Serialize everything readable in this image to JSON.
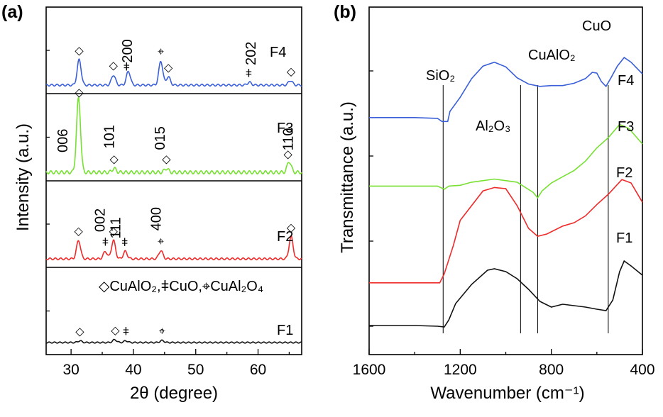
{
  "chart_data": [
    {
      "panel": "(a)",
      "type": "line",
      "xlabel": "2θ (degree)",
      "ylabel": "Intensity (a.u.)",
      "xlim": [
        26,
        67
      ],
      "xticks": [
        30,
        40,
        50,
        60
      ],
      "legend_text": "◇CuAlO₂,ǂCuO,⌖CuAl₂O₄",
      "panels": [
        {
          "name": "F4",
          "color": "#3a5fd8",
          "peaks": [
            [
              31.3,
              0.55
            ],
            [
              36.8,
              0.22
            ],
            [
              39.2,
              0.3
            ],
            [
              44.4,
              0.52
            ],
            [
              45.6,
              0.18
            ],
            [
              58.6,
              0.06
            ],
            [
              65.2,
              0.1
            ]
          ],
          "markers": [
            {
              "x": 31.3,
              "sym": "◇"
            },
            {
              "x": 36.8,
              "sym": "◇"
            },
            {
              "x": 38.9,
              "sym": "ǂ"
            },
            {
              "x": 44.4,
              "sym": "⌖"
            },
            {
              "x": 45.6,
              "sym": "◇"
            },
            {
              "x": 58.5,
              "sym": "ǂ"
            },
            {
              "x": 65.3,
              "sym": "◇"
            }
          ],
          "hkl": [
            {
              "x": 39.8,
              "text": "200"
            },
            {
              "x": 59.6,
              "text": "202"
            }
          ]
        },
        {
          "name": "F3",
          "color": "#77e033",
          "peaks": [
            [
              31.2,
              0.95
            ],
            [
              36.9,
              0.05
            ],
            [
              45.3,
              0.05
            ],
            [
              65.0,
              0.14
            ]
          ],
          "markers": [
            {
              "x": 31.3,
              "sym": "◇"
            },
            {
              "x": 36.9,
              "sym": "◇"
            },
            {
              "x": 45.3,
              "sym": "◇"
            },
            {
              "x": 64.8,
              "sym": "◇"
            }
          ],
          "hkl": [
            {
              "x": 29.4,
              "text": "006"
            },
            {
              "x": 36.9,
              "text": "101"
            },
            {
              "x": 45.0,
              "text": "015"
            },
            {
              "x": 65.6,
              "text": "110"
            }
          ]
        },
        {
          "name": "F2",
          "color": "#ee2a2a",
          "peaks": [
            [
              31.2,
              0.4
            ],
            [
              35.5,
              0.16
            ],
            [
              36.8,
              0.4
            ],
            [
              38.7,
              0.16
            ],
            [
              44.4,
              0.18
            ],
            [
              65.3,
              0.48
            ]
          ],
          "markers": [
            {
              "x": 31.2,
              "sym": "◇"
            },
            {
              "x": 35.5,
              "sym": "ǂ"
            },
            {
              "x": 36.8,
              "sym": "◇"
            },
            {
              "x": 38.6,
              "sym": "ǂ"
            },
            {
              "x": 44.4,
              "sym": "⌖"
            },
            {
              "x": 65.3,
              "sym": "◇"
            }
          ],
          "hkl": [
            {
              "x": 35.4,
              "text": "002"
            },
            {
              "x": 37.9,
              "text": "111"
            },
            {
              "x": 44.4,
              "text": "400"
            }
          ]
        },
        {
          "name": "F1",
          "color": "#111111",
          "peaks": [
            [
              31.4,
              0.06
            ],
            [
              37.0,
              0.1
            ],
            [
              38.8,
              0.06
            ],
            [
              44.6,
              0.07
            ]
          ],
          "markers": [
            {
              "x": 31.4,
              "sym": "◇"
            },
            {
              "x": 37.1,
              "sym": "◇"
            },
            {
              "x": 38.8,
              "sym": "ǂ"
            },
            {
              "x": 44.6,
              "sym": "⌖"
            }
          ],
          "hkl": []
        }
      ]
    },
    {
      "panel": "(b)",
      "type": "line",
      "xlabel": "Wavenumber (cm⁻¹)",
      "ylabel": "Transmittance (a.u.)",
      "xlim": [
        1600,
        400
      ],
      "xticks": [
        1600,
        1200,
        800,
        400
      ],
      "series": [
        {
          "name": "F4",
          "color": "#3a5fd8",
          "points": [
            [
              1600,
              0.22
            ],
            [
              1400,
              0.22
            ],
            [
              1300,
              0.21
            ],
            [
              1280,
              0.17
            ],
            [
              1255,
              0.17
            ],
            [
              1245,
              0.3
            ],
            [
              1200,
              0.48
            ],
            [
              1150,
              0.72
            ],
            [
              1100,
              0.88
            ],
            [
              1050,
              0.93
            ],
            [
              1000,
              0.87
            ],
            [
              950,
              0.73
            ],
            [
              900,
              0.65
            ],
            [
              850,
              0.62
            ],
            [
              800,
              0.63
            ],
            [
              750,
              0.63
            ],
            [
              700,
              0.66
            ],
            [
              650,
              0.72
            ],
            [
              620,
              0.8
            ],
            [
              600,
              0.79
            ],
            [
              580,
              0.68
            ],
            [
              560,
              0.62
            ],
            [
              540,
              0.72
            ],
            [
              510,
              0.88
            ],
            [
              480,
              0.99
            ],
            [
              450,
              0.93
            ],
            [
              400,
              0.78
            ]
          ]
        },
        {
          "name": "F3",
          "color": "#77e033",
          "points": [
            [
              1600,
              0.16
            ],
            [
              1400,
              0.16
            ],
            [
              1300,
              0.16
            ],
            [
              1270,
              0.12
            ],
            [
              1250,
              0.16
            ],
            [
              1200,
              0.17
            ],
            [
              1150,
              0.21
            ],
            [
              1050,
              0.25
            ],
            [
              950,
              0.21
            ],
            [
              880,
              0.08
            ],
            [
              860,
              0.01
            ],
            [
              840,
              0.1
            ],
            [
              800,
              0.2
            ],
            [
              750,
              0.28
            ],
            [
              700,
              0.36
            ],
            [
              650,
              0.48
            ],
            [
              600,
              0.65
            ],
            [
              550,
              0.78
            ],
            [
              500,
              0.95
            ],
            [
              460,
              0.9
            ],
            [
              400,
              0.7
            ]
          ]
        },
        {
          "name": "F2",
          "color": "#ee2a2a",
          "points": [
            [
              1600,
              0.07
            ],
            [
              1400,
              0.07
            ],
            [
              1290,
              0.07
            ],
            [
              1270,
              0.15
            ],
            [
              1230,
              0.4
            ],
            [
              1200,
              0.62
            ],
            [
              1100,
              0.88
            ],
            [
              1050,
              0.91
            ],
            [
              1000,
              0.9
            ],
            [
              950,
              0.75
            ],
            [
              900,
              0.55
            ],
            [
              860,
              0.48
            ],
            [
              820,
              0.5
            ],
            [
              750,
              0.57
            ],
            [
              700,
              0.6
            ],
            [
              650,
              0.66
            ],
            [
              600,
              0.76
            ],
            [
              550,
              0.85
            ],
            [
              490,
              0.98
            ],
            [
              450,
              0.95
            ],
            [
              400,
              0.78
            ]
          ]
        },
        {
          "name": "F1",
          "color": "#111111",
          "points": [
            [
              1600,
              0.04
            ],
            [
              1400,
              0.04
            ],
            [
              1300,
              0.03
            ],
            [
              1270,
              0.02
            ],
            [
              1250,
              0.12
            ],
            [
              1220,
              0.35
            ],
            [
              1150,
              0.62
            ],
            [
              1080,
              0.82
            ],
            [
              1050,
              0.84
            ],
            [
              1000,
              0.8
            ],
            [
              950,
              0.7
            ],
            [
              900,
              0.55
            ],
            [
              850,
              0.38
            ],
            [
              800,
              0.3
            ],
            [
              750,
              0.34
            ],
            [
              700,
              0.32
            ],
            [
              650,
              0.3
            ],
            [
              600,
              0.27
            ],
            [
              560,
              0.25
            ],
            [
              530,
              0.4
            ],
            [
              500,
              0.8
            ],
            [
              480,
              0.95
            ],
            [
              450,
              0.88
            ],
            [
              400,
              0.75
            ]
          ]
        }
      ],
      "reference_lines": [
        1275,
        935,
        860,
        550
      ],
      "annotations": {
        "sio2": "SiO₂",
        "al2o3": "Al₂O₃",
        "cualo2": "CuAlO₂",
        "cuo": "CuO"
      }
    }
  ]
}
